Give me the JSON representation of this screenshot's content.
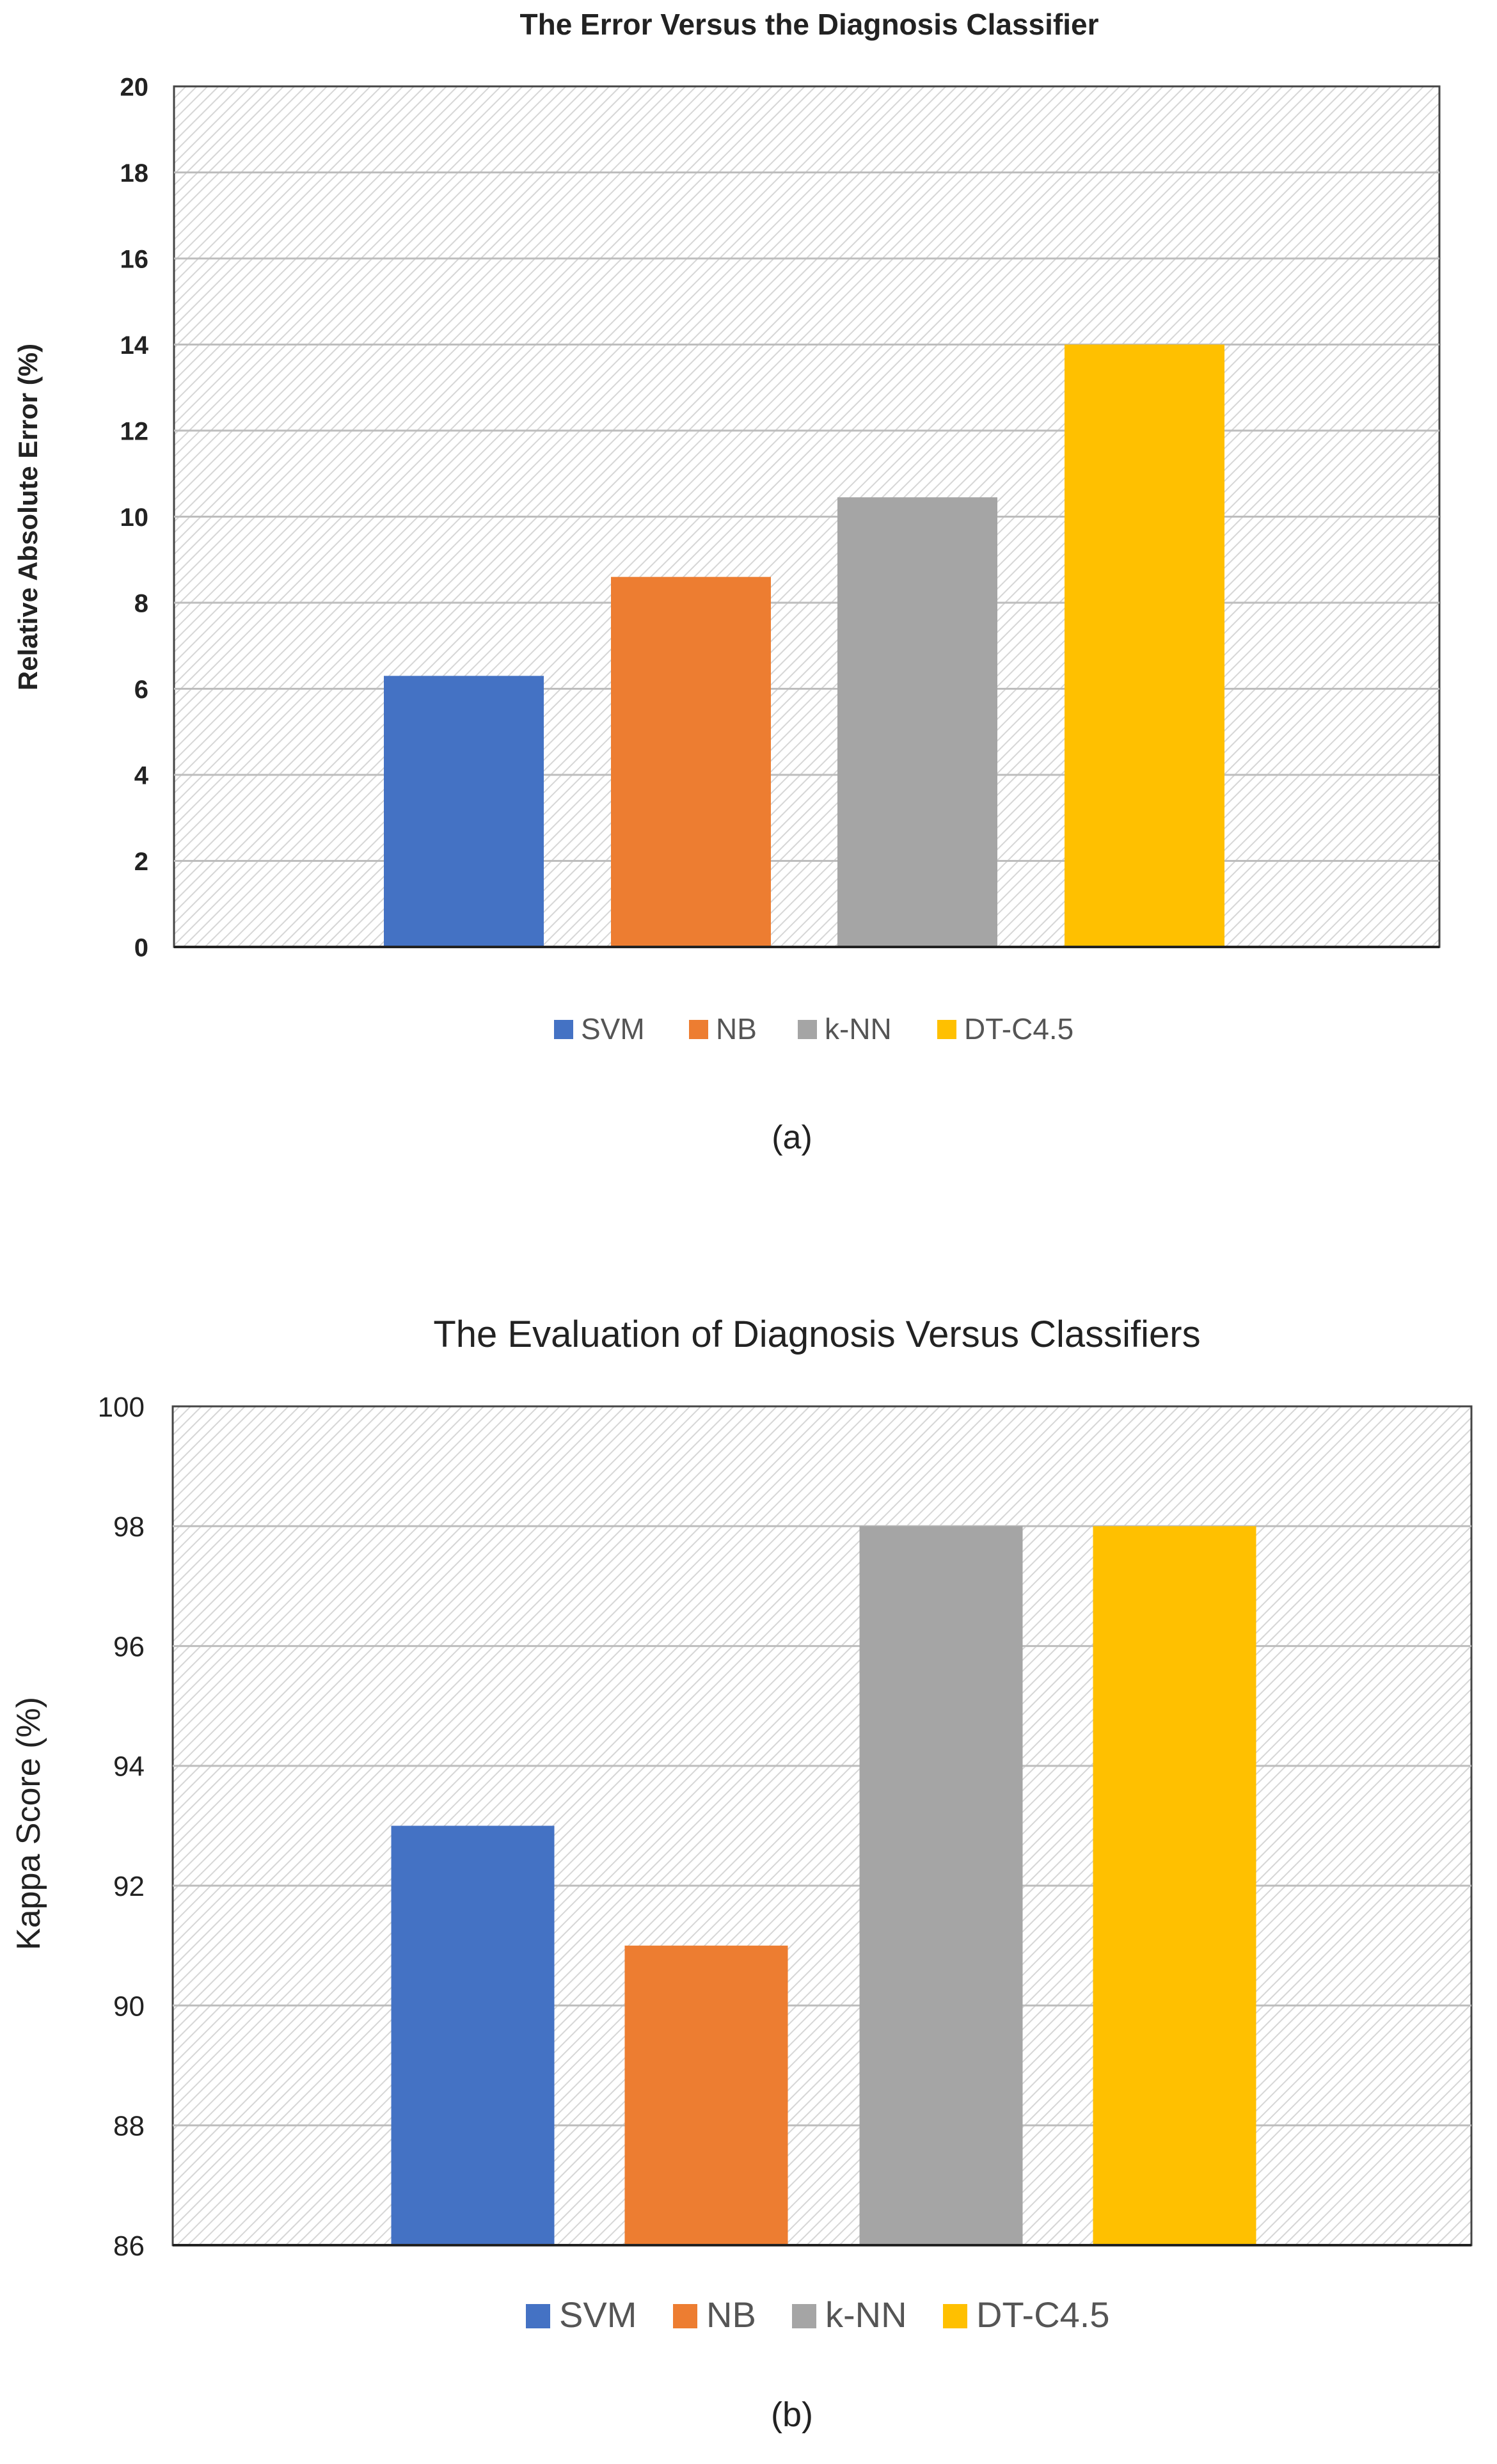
{
  "chart_data": [
    {
      "type": "bar",
      "title": "The Error Versus the Diagnosis Classifier",
      "xlabel": "",
      "ylabel": "Relative Absolute Error (%)",
      "ylim": [
        0,
        20
      ],
      "yticks": [
        0,
        2,
        4,
        6,
        8,
        10,
        12,
        14,
        16,
        18,
        20
      ],
      "grid": true,
      "legend_position": "bottom",
      "series": [
        {
          "name": "SVM",
          "values": [
            6.3
          ],
          "color": "#4472C4"
        },
        {
          "name": "NB",
          "values": [
            8.6
          ],
          "color": "#ED7D31"
        },
        {
          "name": "k-NN",
          "values": [
            10.45
          ],
          "color": "#A5A5A5"
        },
        {
          "name": "DT-C4.5",
          "values": [
            14.0
          ],
          "color": "#FFC000"
        }
      ],
      "caption": "(a)"
    },
    {
      "type": "bar",
      "title": "The Evaluation of Diagnosis Versus Classifiers",
      "xlabel": "",
      "ylabel": "Kappa Score (%)",
      "ylim": [
        86,
        100
      ],
      "yticks": [
        86,
        88,
        90,
        92,
        94,
        96,
        98,
        100
      ],
      "grid": true,
      "legend_position": "bottom",
      "series": [
        {
          "name": "SVM",
          "values": [
            93
          ],
          "color": "#4472C4"
        },
        {
          "name": "NB",
          "values": [
            91
          ],
          "color": "#ED7D31"
        },
        {
          "name": "k-NN",
          "values": [
            98
          ],
          "color": "#A5A5A5"
        },
        {
          "name": "DT-C4.5",
          "values": [
            98
          ],
          "color": "#FFC000"
        }
      ],
      "caption": "(b)"
    }
  ]
}
